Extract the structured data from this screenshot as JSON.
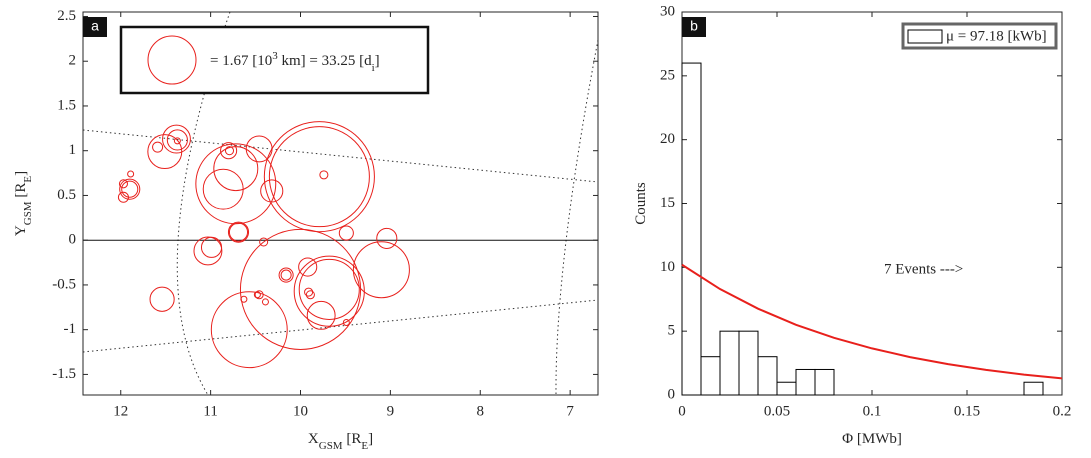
{
  "chart_data": [
    {
      "type": "bubble",
      "label": "a",
      "xlabel": [
        {
          "text": "X"
        },
        {
          "text": "GSM",
          "sub": true
        },
        {
          "text": " [R"
        },
        {
          "text": "E",
          "sub": true
        },
        {
          "text": "]"
        }
      ],
      "ylabel": [
        {
          "text": "Y"
        },
        {
          "text": "GSM",
          "sub": true
        },
        {
          "text": " [R"
        },
        {
          "text": "E",
          "sub": true
        },
        {
          "text": "]"
        }
      ],
      "xlim": [
        12.42,
        6.69
      ],
      "ylim": [
        -1.73,
        2.55
      ],
      "xticks": [
        12,
        11,
        10,
        9,
        8,
        7
      ],
      "yticks": [
        -1.5,
        -1,
        -0.5,
        0,
        0.5,
        1,
        1.5,
        2,
        2.5
      ],
      "zero_line": true,
      "color": "#e8201c",
      "size_legend": {
        "value": 1.67,
        "label": [
          {
            "text": "= 1.67 [10"
          },
          {
            "text": "3",
            "sup": true
          },
          {
            "text": " km] = 33.25 [d"
          },
          {
            "text": "i",
            "sub": true
          },
          {
            "text": "]"
          }
        ]
      },
      "x": [
        11.51,
        11.59,
        11.38,
        11.37,
        11.37,
        11.9,
        11.9,
        11.97,
        11.97,
        11.89,
        10.8,
        10.79,
        10.46,
        10.72,
        10.86,
        10.72,
        9.79,
        9.79,
        9.74,
        10.32,
        10.69,
        10.69,
        9.49,
        10.41,
        9.04,
        10.99,
        11.03,
        11.54,
        9.92,
        10.16,
        10.16,
        9.1,
        10.57,
        10.0,
        9.68,
        9.68,
        9.77,
        10.48,
        10.46,
        10.63,
        10.39,
        9.91,
        9.89,
        9.49
      ],
      "y": [
        0.99,
        1.04,
        1.13,
        1.12,
        1.11,
        0.57,
        0.57,
        0.48,
        0.63,
        0.74,
        1.0,
        1.0,
        1.02,
        0.8,
        0.57,
        0.63,
        0.71,
        0.71,
        0.73,
        0.55,
        0.09,
        0.09,
        0.08,
        -0.02,
        0.02,
        -0.08,
        -0.12,
        -0.66,
        -0.3,
        -0.39,
        -0.39,
        -0.33,
        -1.0,
        -0.55,
        -0.57,
        -0.55,
        -0.84,
        -0.61,
        -0.61,
        -0.66,
        -0.69,
        -0.58,
        -0.61,
        -0.92
      ],
      "sizes": [
        1.18,
        0.35,
        0.97,
        0.7,
        0.21,
        0.7,
        0.56,
        0.35,
        0.28,
        0.21,
        0.56,
        0.28,
        0.9,
        1.53,
        1.39,
        2.78,
        3.83,
        3.48,
        0.28,
        0.77,
        0.7,
        0.63,
        0.49,
        0.28,
        0.7,
        0.7,
        0.97,
        0.84,
        0.63,
        0.49,
        0.35,
        1.95,
        2.64,
        4.18,
        2.44,
        2.09,
        0.97,
        0.21,
        0.28,
        0.21,
        0.21,
        0.28,
        0.28,
        0.21
      ]
    },
    {
      "type": "histogram",
      "label": "b",
      "xlabel": [
        {
          "text": "Φ [MWb]"
        }
      ],
      "ylabel": [
        {
          "text": "Counts"
        }
      ],
      "xlim": [
        0,
        0.2
      ],
      "ylim": [
        0,
        30
      ],
      "xticks": [
        0,
        0.05,
        0.1,
        0.15,
        0.2
      ],
      "yticks": [
        0,
        5,
        10,
        15,
        20,
        25,
        30
      ],
      "annotation": "7 Events --->",
      "series": [
        {
          "type": "histogram",
          "name": "μ = 97.18 [kWb]",
          "color": "#000000",
          "bins": [
            0,
            0.01,
            0.02,
            0.03,
            0.04,
            0.05,
            0.06,
            0.07,
            0.08,
            0.09,
            0.1,
            0.11,
            0.12,
            0.13,
            0.14,
            0.15,
            0.16,
            0.17,
            0.18,
            0.19,
            0.2
          ],
          "counts": [
            26,
            3,
            5,
            5,
            3,
            1,
            2,
            2,
            0,
            0,
            0,
            0,
            0,
            0,
            0,
            0,
            0,
            0,
            1,
            0
          ]
        },
        {
          "type": "line",
          "color": "#e8201c",
          "x": [
            0,
            0.02,
            0.04,
            0.06,
            0.08,
            0.1,
            0.12,
            0.14,
            0.16,
            0.18,
            0.2
          ],
          "y": [
            10.2,
            8.3,
            6.76,
            5.5,
            4.48,
            3.65,
            2.97,
            2.42,
            1.97,
            1.6,
            1.3
          ]
        }
      ]
    }
  ]
}
